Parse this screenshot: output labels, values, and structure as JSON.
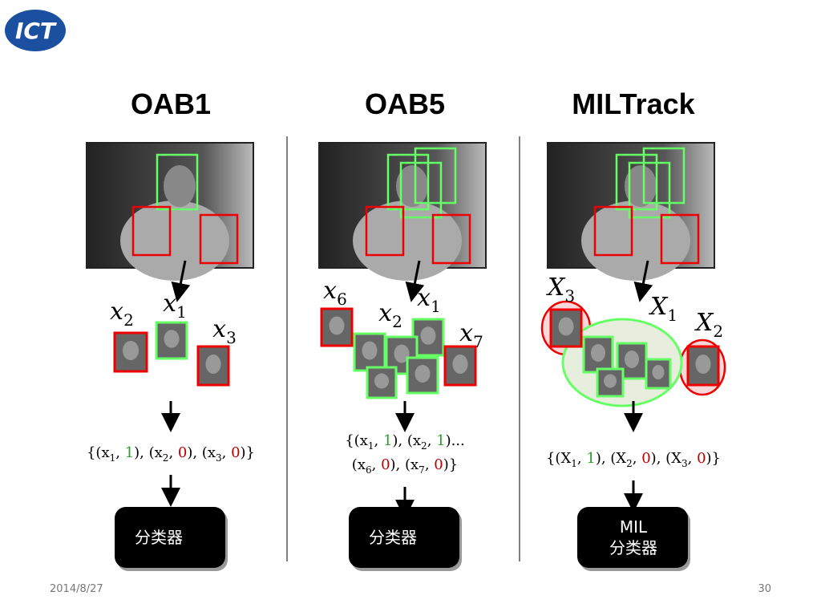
{
  "header": {
    "logo": "ICT"
  },
  "columns": [
    {
      "title": "OAB1",
      "labels": [
        {
          "symbol": "x",
          "sub": "2"
        },
        {
          "symbol": "x",
          "sub": "1"
        },
        {
          "symbol": "x",
          "sub": "3"
        }
      ],
      "formula": [
        [
          {
            "text": "{(x"
          },
          {
            "text": "1",
            "sub": true
          },
          {
            "text": ", "
          },
          {
            "text": "1",
            "color": "#2ca02c"
          },
          {
            "text": "), (x"
          },
          {
            "text": "2",
            "sub": true
          },
          {
            "text": ", "
          },
          {
            "text": "0",
            "color": "#c00000"
          },
          {
            "text": "), (x"
          },
          {
            "text": "3",
            "sub": true
          },
          {
            "text": ", "
          },
          {
            "text": "0",
            "color": "#c00000"
          },
          {
            "text": ")}"
          }
        ]
      ],
      "classifier": [
        "分类器"
      ]
    },
    {
      "title": "OAB5",
      "labels": [
        {
          "symbol": "x",
          "sub": "6"
        },
        {
          "symbol": "x",
          "sub": "2"
        },
        {
          "symbol": "x",
          "sub": "1"
        },
        {
          "symbol": "x",
          "sub": "7"
        }
      ],
      "formula": [
        [
          {
            "text": "{(x"
          },
          {
            "text": "1",
            "sub": true
          },
          {
            "text": ", "
          },
          {
            "text": "1",
            "color": "#2ca02c"
          },
          {
            "text": "), (x"
          },
          {
            "text": "2",
            "sub": true
          },
          {
            "text": ", "
          },
          {
            "text": "1",
            "color": "#2ca02c"
          },
          {
            "text": ")..."
          }
        ],
        [
          {
            "text": "(x"
          },
          {
            "text": "6",
            "sub": true
          },
          {
            "text": ", "
          },
          {
            "text": "0",
            "color": "#c00000"
          },
          {
            "text": "), (x"
          },
          {
            "text": "7",
            "sub": true
          },
          {
            "text": ", "
          },
          {
            "text": "0",
            "color": "#c00000"
          },
          {
            "text": ")}"
          }
        ]
      ],
      "classifier": [
        "分类器"
      ]
    },
    {
      "title": "MILTrack",
      "labels": [
        {
          "symbol": "X",
          "sub": "3"
        },
        {
          "symbol": "X",
          "sub": "1"
        },
        {
          "symbol": "X",
          "sub": "2"
        }
      ],
      "formula": [
        [
          {
            "text": "{(X"
          },
          {
            "text": "1",
            "sub": true
          },
          {
            "text": ", "
          },
          {
            "text": "1",
            "color": "#2ca02c"
          },
          {
            "text": "), (X"
          },
          {
            "text": "2",
            "sub": true
          },
          {
            "text": ", "
          },
          {
            "text": "0",
            "color": "#c00000"
          },
          {
            "text": "), (X"
          },
          {
            "text": "3",
            "sub": true
          },
          {
            "text": ", "
          },
          {
            "text": "0",
            "color": "#c00000"
          },
          {
            "text": ")}"
          }
        ]
      ],
      "classifier": [
        "MIL",
        "分类器"
      ]
    }
  ],
  "footer": {
    "date": "2014/8/27",
    "page": "30"
  }
}
